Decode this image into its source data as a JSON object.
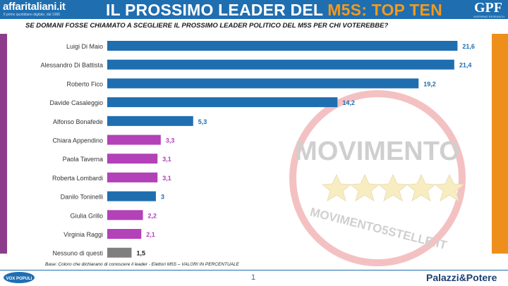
{
  "header": {
    "logo_left": "affaritaliani.it",
    "logo_left_sub": "Il primo quotidiano digitale, dal 1996",
    "title_main": "IL PROSSIMO LEADER DEL ",
    "title_highlight": "M5S: TOP TEN",
    "logo_right": "GPF",
    "logo_right_sub": "INSPIRING RESEARCH"
  },
  "question": "SE DOMANI FOSSE CHIAMATO A SCEGLIERE IL PROSSIMO LEADER POLITICO DEL M5S PER CHI VOTEREBBE?",
  "footer": {
    "note": "Base: Coloro che dichiarano di conoscere il leader - Elettori M5S – VALORI IN PERCENTUALE",
    "vox_logo": "VOX POPULI",
    "page_number": "1",
    "brand": "Palazzi&Potere"
  },
  "watermark": {
    "top_text": "MOVIMENTO",
    "bottom_text": "MOVIMENTO5STELLE.IT"
  },
  "colors": {
    "blue": "#1f6eb0",
    "purple": "#b341b8",
    "gray": "#7f7f7f",
    "accent_orange": "#f29a1e",
    "side_purple": "#8d3c8c",
    "side_orange": "#ee8f1c"
  },
  "chart_data": {
    "type": "bar",
    "orientation": "horizontal",
    "categories": [
      "Luigi Di Maio",
      "Alessandro Di Battista",
      "Roberto Fico",
      "Davide Casaleggio",
      "Alfonso Bonafede",
      "Chiara Appendino",
      "Paola Taverna",
      "Roberta Lombardi",
      "Danilo Toninelli",
      "Giulia Grillo",
      "Virginia Raggi",
      "Nessuno di questi"
    ],
    "values": [
      21.6,
      21.4,
      19.2,
      14.2,
      5.3,
      3.3,
      3.1,
      3.1,
      3,
      2.2,
      2.1,
      1.5
    ],
    "labels": [
      "21,6",
      "21,4",
      "19,2",
      "14,2",
      "5,3",
      "3,3",
      "3,1",
      "3,1",
      "3",
      "2,2",
      "2,1",
      "1,5"
    ],
    "bar_colors": [
      "blue",
      "blue",
      "blue",
      "blue",
      "blue",
      "purple",
      "purple",
      "purple",
      "blue",
      "purple",
      "purple",
      "gray"
    ],
    "xlim": [
      0,
      22.8
    ],
    "grid": false
  }
}
